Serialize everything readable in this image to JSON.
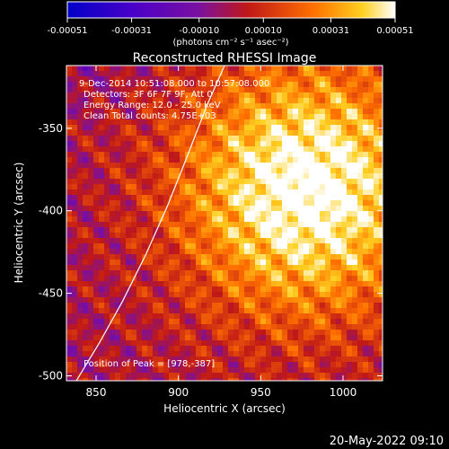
{
  "chart_data": {
    "type": "heatmap",
    "title": "Reconstructed RHESSI Image",
    "colorbar": {
      "ticks": [
        "-0.00051",
        "-0.00031",
        "-0.00010",
        "0.00010",
        "0.00031",
        "0.00051"
      ],
      "unit_label": "(photons cm⁻² s⁻¹ asec⁻²)",
      "vmin": -0.00051,
      "vmax": 0.00051,
      "colormap": "blue-purple-red-yellow-white"
    },
    "xlabel": "Heliocentric X (arcsec)",
    "ylabel": "Heliocentric Y (arcsec)",
    "xlim": [
      832,
      1024
    ],
    "ylim": [
      -503,
      -312
    ],
    "xticks": [
      850,
      900,
      950,
      1000
    ],
    "yticks": [
      -350,
      -400,
      -450,
      -500
    ],
    "annotations": [
      "9-Dec-2014 10:51:08.000 to 10:57:08.000",
      "Detectors: 3F 6F 7F 9F, Att 0",
      "Energy Range: 12.0 - 25.0 keV",
      "Clean    Total counts: 4.75E+03",
      "Position of Peak = [978,-387]"
    ],
    "peak": {
      "x": 978,
      "y": -387
    },
    "limb": [
      {
        "x": 838,
        "y": -503
      },
      {
        "x": 852,
        "y": -480
      },
      {
        "x": 866,
        "y": -455
      },
      {
        "x": 880,
        "y": -427
      },
      {
        "x": 893,
        "y": -398
      },
      {
        "x": 905,
        "y": -368
      },
      {
        "x": 917,
        "y": -337
      },
      {
        "x": 928,
        "y": -312
      }
    ]
  },
  "footer": {
    "date": "20-May-2022 09:10"
  }
}
